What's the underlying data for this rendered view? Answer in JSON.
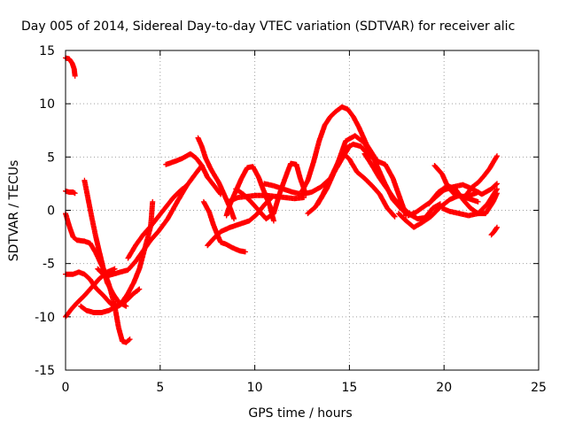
{
  "chart_data": {
    "type": "scatter",
    "title": "Day 005 of 2014, Sidereal Day-to-day VTEC variation (SDTVAR) for receiver alic",
    "xlabel": "GPS time / hours",
    "ylabel": "SDTVAR / TECUs",
    "xlim": [
      0,
      25
    ],
    "ylim": [
      -15,
      15
    ],
    "xticks": [
      0,
      5,
      10,
      15,
      20,
      25
    ],
    "yticks": [
      -15,
      -10,
      -5,
      0,
      5,
      10,
      15
    ],
    "xtick_labels": [
      "0",
      "5",
      "10",
      "15",
      "20",
      "25"
    ],
    "ytick_labels": [
      "-15",
      "-10",
      "-5",
      "0",
      "5",
      "10",
      "15"
    ],
    "grid": true,
    "marker": "+",
    "color": "#ff0000",
    "series": [
      {
        "name": "s1",
        "points": [
          [
            0,
            14.3
          ],
          [
            0.2,
            14.2
          ],
          [
            0.35,
            13.8
          ],
          [
            0.45,
            13.3
          ],
          [
            0.5,
            12.6
          ]
        ]
      },
      {
        "name": "s2",
        "points": [
          [
            0,
            1.8
          ],
          [
            0.2,
            1.7
          ],
          [
            0.4,
            1.7
          ],
          [
            0.5,
            1.6
          ]
        ]
      },
      {
        "name": "s3",
        "points": [
          [
            0,
            -0.3
          ],
          [
            0.2,
            -1.5
          ],
          [
            0.4,
            -2.5
          ],
          [
            0.6,
            -2.8
          ],
          [
            1.0,
            -2.9
          ],
          [
            1.3,
            -3.1
          ],
          [
            1.6,
            -4.0
          ],
          [
            2.0,
            -5.5
          ],
          [
            2.3,
            -7.0
          ],
          [
            2.6,
            -9.0
          ],
          [
            2.8,
            -11.0
          ],
          [
            3.0,
            -12.3
          ],
          [
            3.2,
            -12.4
          ],
          [
            3.4,
            -12.1
          ]
        ]
      },
      {
        "name": "s4",
        "points": [
          [
            0,
            -6.0
          ],
          [
            0.4,
            -6.0
          ],
          [
            0.7,
            -5.8
          ],
          [
            1.0,
            -6.0
          ],
          [
            1.3,
            -6.5
          ],
          [
            1.6,
            -7.3
          ],
          [
            2.0,
            -8.0
          ],
          [
            2.4,
            -8.8
          ],
          [
            2.8,
            -9.0
          ],
          [
            3.2,
            -8.5
          ],
          [
            3.6,
            -7.8
          ],
          [
            3.9,
            -7.4
          ]
        ]
      },
      {
        "name": "s5",
        "points": [
          [
            0,
            -10.0
          ],
          [
            0.3,
            -9.3
          ],
          [
            0.6,
            -8.7
          ],
          [
            1.0,
            -8.0
          ],
          [
            1.4,
            -7.2
          ],
          [
            1.8,
            -6.4
          ],
          [
            2.2,
            -5.8
          ],
          [
            2.6,
            -5.5
          ]
        ]
      },
      {
        "name": "s6",
        "points": [
          [
            1.0,
            2.8
          ],
          [
            1.2,
            1.0
          ],
          [
            1.4,
            -0.8
          ],
          [
            1.6,
            -2.5
          ],
          [
            1.8,
            -4.0
          ],
          [
            2.0,
            -5.5
          ],
          [
            2.2,
            -6.8
          ],
          [
            2.5,
            -7.8
          ],
          [
            2.8,
            -8.6
          ],
          [
            3.2,
            -9.0
          ]
        ]
      },
      {
        "name": "s7",
        "points": [
          [
            0.8,
            -9.0
          ],
          [
            1.1,
            -9.4
          ],
          [
            1.5,
            -9.6
          ],
          [
            1.9,
            -9.6
          ],
          [
            2.3,
            -9.4
          ],
          [
            2.7,
            -9.0
          ],
          [
            3.0,
            -8.6
          ],
          [
            3.3,
            -7.8
          ],
          [
            3.6,
            -6.8
          ],
          [
            3.9,
            -5.5
          ],
          [
            4.2,
            -3.5
          ],
          [
            4.5,
            -1.5
          ],
          [
            4.6,
            0.8
          ]
        ]
      },
      {
        "name": "s8",
        "points": [
          [
            1.7,
            -5.5
          ],
          [
            2.1,
            -6.2
          ],
          [
            2.5,
            -6.0
          ],
          [
            2.9,
            -5.8
          ],
          [
            3.3,
            -5.6
          ],
          [
            3.7,
            -4.8
          ],
          [
            4.1,
            -3.8
          ],
          [
            4.5,
            -2.8
          ],
          [
            4.9,
            -2.0
          ],
          [
            5.4,
            -0.8
          ],
          [
            5.9,
            0.8
          ],
          [
            6.4,
            2.3
          ],
          [
            6.9,
            3.5
          ],
          [
            7.2,
            4.2
          ]
        ]
      },
      {
        "name": "s9",
        "points": [
          [
            3.3,
            -4.5
          ],
          [
            3.7,
            -3.3
          ],
          [
            4.1,
            -2.3
          ],
          [
            4.5,
            -1.5
          ],
          [
            4.9,
            -0.6
          ],
          [
            5.3,
            0.3
          ],
          [
            5.7,
            1.2
          ],
          [
            6.1,
            1.9
          ],
          [
            6.4,
            2.3
          ]
        ]
      },
      {
        "name": "s10",
        "points": [
          [
            5.3,
            4.3
          ],
          [
            5.8,
            4.6
          ],
          [
            6.2,
            4.9
          ],
          [
            6.6,
            5.3
          ],
          [
            6.9,
            4.9
          ],
          [
            7.2,
            4.2
          ],
          [
            7.5,
            3.1
          ],
          [
            7.9,
            2.2
          ],
          [
            8.2,
            1.5
          ]
        ]
      },
      {
        "name": "s11",
        "points": [
          [
            7.0,
            6.8
          ],
          [
            7.2,
            6.0
          ],
          [
            7.4,
            4.9
          ],
          [
            7.7,
            3.8
          ],
          [
            8.1,
            2.6
          ],
          [
            8.4,
            1.4
          ],
          [
            8.7,
            0.2
          ],
          [
            8.9,
            -0.8
          ]
        ]
      },
      {
        "name": "s12",
        "points": [
          [
            7.3,
            0.8
          ],
          [
            7.6,
            -0.2
          ],
          [
            7.8,
            -1.3
          ],
          [
            8.0,
            -2.2
          ],
          [
            8.2,
            -3.0
          ],
          [
            8.5,
            -3.2
          ],
          [
            8.8,
            -3.5
          ],
          [
            9.2,
            -3.8
          ],
          [
            9.5,
            -3.9
          ]
        ]
      },
      {
        "name": "s13",
        "points": [
          [
            7.5,
            -3.3
          ],
          [
            7.8,
            -2.7
          ],
          [
            8.2,
            -2.0
          ],
          [
            8.7,
            -1.6
          ],
          [
            9.2,
            -1.3
          ],
          [
            9.7,
            -1.0
          ],
          [
            10.1,
            -0.4
          ],
          [
            10.5,
            0.5
          ],
          [
            10.9,
            1.2
          ]
        ]
      },
      {
        "name": "s14",
        "points": [
          [
            8.5,
            -0.5
          ],
          [
            8.7,
            0.6
          ],
          [
            9.0,
            1.8
          ],
          [
            9.3,
            3.0
          ],
          [
            9.6,
            4.0
          ],
          [
            9.9,
            4.1
          ],
          [
            10.2,
            3.1
          ],
          [
            10.5,
            1.7
          ],
          [
            10.8,
            0.4
          ],
          [
            11.0,
            -1.0
          ]
        ]
      },
      {
        "name": "s15",
        "points": [
          [
            8.6,
            0.8
          ],
          [
            9.1,
            1.2
          ],
          [
            9.6,
            1.3
          ],
          [
            10.1,
            1.4
          ],
          [
            10.6,
            1.4
          ],
          [
            11.1,
            1.3
          ],
          [
            11.6,
            1.2
          ],
          [
            12.1,
            1.1
          ],
          [
            12.6,
            1.2
          ]
        ]
      },
      {
        "name": "s16",
        "points": [
          [
            9.0,
            2.0
          ],
          [
            9.4,
            1.5
          ],
          [
            9.8,
            0.8
          ],
          [
            10.2,
            0.0
          ],
          [
            10.6,
            -0.8
          ],
          [
            11.0,
            -0.3
          ],
          [
            11.3,
            1.5
          ],
          [
            11.6,
            3.0
          ],
          [
            11.9,
            4.4
          ],
          [
            12.2,
            4.3
          ],
          [
            12.4,
            3.0
          ],
          [
            12.7,
            1.5
          ]
        ]
      },
      {
        "name": "s17",
        "points": [
          [
            10.5,
            2.5
          ],
          [
            11.0,
            2.3
          ],
          [
            11.5,
            2.0
          ],
          [
            12.0,
            1.7
          ],
          [
            12.5,
            1.5
          ],
          [
            13.0,
            1.7
          ],
          [
            13.5,
            2.2
          ],
          [
            14.0,
            3.0
          ],
          [
            14.5,
            4.5
          ],
          [
            15.0,
            6.0
          ]
        ]
      },
      {
        "name": "s18",
        "points": [
          [
            12.5,
            1.8
          ],
          [
            12.8,
            2.8
          ],
          [
            13.1,
            4.5
          ],
          [
            13.4,
            6.5
          ],
          [
            13.7,
            8.0
          ],
          [
            14.0,
            8.8
          ],
          [
            14.3,
            9.3
          ],
          [
            14.6,
            9.7
          ],
          [
            14.9,
            9.5
          ],
          [
            15.2,
            8.8
          ],
          [
            15.5,
            7.8
          ],
          [
            15.9,
            6.2
          ],
          [
            16.4,
            4.8
          ]
        ]
      },
      {
        "name": "s19",
        "points": [
          [
            12.8,
            -0.3
          ],
          [
            13.2,
            0.3
          ],
          [
            13.6,
            1.5
          ],
          [
            14.0,
            3.0
          ],
          [
            14.4,
            4.5
          ],
          [
            14.8,
            5.8
          ],
          [
            15.2,
            6.2
          ],
          [
            15.6,
            6.0
          ],
          [
            16.0,
            5.2
          ],
          [
            16.5,
            4.6
          ],
          [
            16.9,
            4.3
          ],
          [
            17.3,
            3.0
          ],
          [
            17.7,
            1.0
          ],
          [
            18.0,
            -0.5
          ]
        ]
      },
      {
        "name": "s20",
        "points": [
          [
            13.3,
            0.5
          ],
          [
            13.8,
            2.0
          ],
          [
            14.3,
            4.0
          ],
          [
            14.8,
            6.5
          ],
          [
            15.3,
            7.0
          ],
          [
            15.8,
            6.3
          ],
          [
            16.3,
            4.8
          ],
          [
            16.8,
            2.8
          ],
          [
            17.3,
            1.0
          ],
          [
            17.8,
            0.0
          ],
          [
            18.2,
            -0.3
          ]
        ]
      },
      {
        "name": "s21",
        "points": [
          [
            14.3,
            4.0
          ],
          [
            14.7,
            5.3
          ],
          [
            15.0,
            4.8
          ],
          [
            15.4,
            3.6
          ],
          [
            15.8,
            3.0
          ],
          [
            16.2,
            2.3
          ],
          [
            16.6,
            1.5
          ],
          [
            17.0,
            0.2
          ],
          [
            17.4,
            -0.6
          ]
        ]
      },
      {
        "name": "s22",
        "points": [
          [
            15.8,
            5.3
          ],
          [
            16.2,
            4.2
          ],
          [
            16.6,
            3.0
          ],
          [
            17.0,
            2.0
          ],
          [
            17.4,
            1.0
          ],
          [
            17.8,
            0.3
          ],
          [
            18.2,
            -0.4
          ],
          [
            18.6,
            -0.8
          ],
          [
            19.0,
            -0.7
          ],
          [
            19.4,
            0.2
          ],
          [
            19.8,
            0.6
          ]
        ]
      },
      {
        "name": "s23",
        "points": [
          [
            17.6,
            -0.3
          ],
          [
            18.0,
            -1.0
          ],
          [
            18.4,
            -1.6
          ],
          [
            18.8,
            -1.2
          ],
          [
            19.3,
            -0.6
          ],
          [
            19.8,
            0.3
          ],
          [
            20.3,
            1.0
          ],
          [
            20.8,
            1.4
          ],
          [
            21.3,
            1.1
          ],
          [
            21.8,
            0.8
          ]
        ]
      },
      {
        "name": "s24",
        "points": [
          [
            18.1,
            -0.5
          ],
          [
            18.5,
            -0.2
          ],
          [
            18.9,
            0.3
          ],
          [
            19.3,
            0.8
          ],
          [
            19.6,
            1.3
          ],
          [
            20.0,
            1.9
          ],
          [
            20.5,
            2.2
          ],
          [
            21.0,
            2.4
          ],
          [
            21.5,
            2.0
          ],
          [
            22.0,
            1.5
          ],
          [
            22.5,
            2.0
          ],
          [
            22.8,
            2.5
          ]
        ]
      },
      {
        "name": "s25",
        "points": [
          [
            19.2,
            0.6
          ],
          [
            19.7,
            1.7
          ],
          [
            20.2,
            2.3
          ],
          [
            20.6,
            2.0
          ],
          [
            21.0,
            1.0
          ],
          [
            21.4,
            0.2
          ],
          [
            21.8,
            -0.3
          ],
          [
            22.2,
            -0.3
          ],
          [
            22.6,
            0.8
          ],
          [
            22.8,
            1.6
          ]
        ]
      },
      {
        "name": "s26",
        "points": [
          [
            19.5,
            4.2
          ],
          [
            19.9,
            3.4
          ],
          [
            20.2,
            2.2
          ],
          [
            20.6,
            1.4
          ],
          [
            21.0,
            1.3
          ],
          [
            21.4,
            1.4
          ],
          [
            21.8,
            1.7
          ]
        ]
      },
      {
        "name": "s27",
        "points": [
          [
            19.9,
            0.2
          ],
          [
            20.3,
            -0.1
          ],
          [
            20.8,
            -0.3
          ],
          [
            21.3,
            -0.5
          ],
          [
            21.8,
            -0.3
          ],
          [
            22.3,
            0.6
          ],
          [
            22.8,
            2.0
          ]
        ]
      },
      {
        "name": "s28",
        "points": [
          [
            21.2,
            1.5
          ],
          [
            21.5,
            2.2
          ],
          [
            21.8,
            2.6
          ],
          [
            22.1,
            3.2
          ],
          [
            22.4,
            3.9
          ],
          [
            22.6,
            4.5
          ],
          [
            22.8,
            5.1
          ]
        ]
      },
      {
        "name": "s29",
        "points": [
          [
            22.5,
            -2.3
          ],
          [
            22.65,
            -2.0
          ],
          [
            22.8,
            -1.6
          ]
        ]
      }
    ]
  }
}
